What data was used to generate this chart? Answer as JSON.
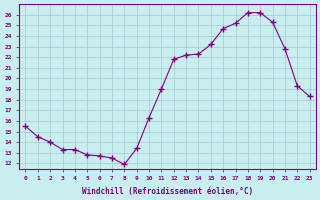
{
  "x": [
    0,
    1,
    2,
    3,
    4,
    5,
    6,
    7,
    8,
    9,
    10,
    11,
    12,
    13,
    14,
    15,
    16,
    17,
    18,
    19,
    20,
    21,
    22,
    23
  ],
  "y": [
    15.5,
    14.5,
    14.0,
    13.3,
    13.3,
    12.8,
    12.7,
    12.5,
    11.9,
    13.4,
    16.3,
    19.0,
    21.8,
    22.2,
    22.3,
    23.2,
    24.7,
    25.2,
    26.2,
    26.2,
    25.3,
    22.8,
    19.3,
    18.3
  ],
  "line_color": "#800080",
  "bg_color": "#c8eef0",
  "grid_color": "#a0c8d0",
  "xlabel": "Windchill (Refroidissement éolien,°C)",
  "ylabel_ticks": [
    12,
    13,
    14,
    15,
    16,
    17,
    18,
    19,
    20,
    21,
    22,
    23,
    24,
    25,
    26
  ],
  "ylim": [
    11.5,
    27.0
  ],
  "xlim": [
    -0.5,
    23.5
  ],
  "font_color": "#800080",
  "tick_color": "#800080"
}
